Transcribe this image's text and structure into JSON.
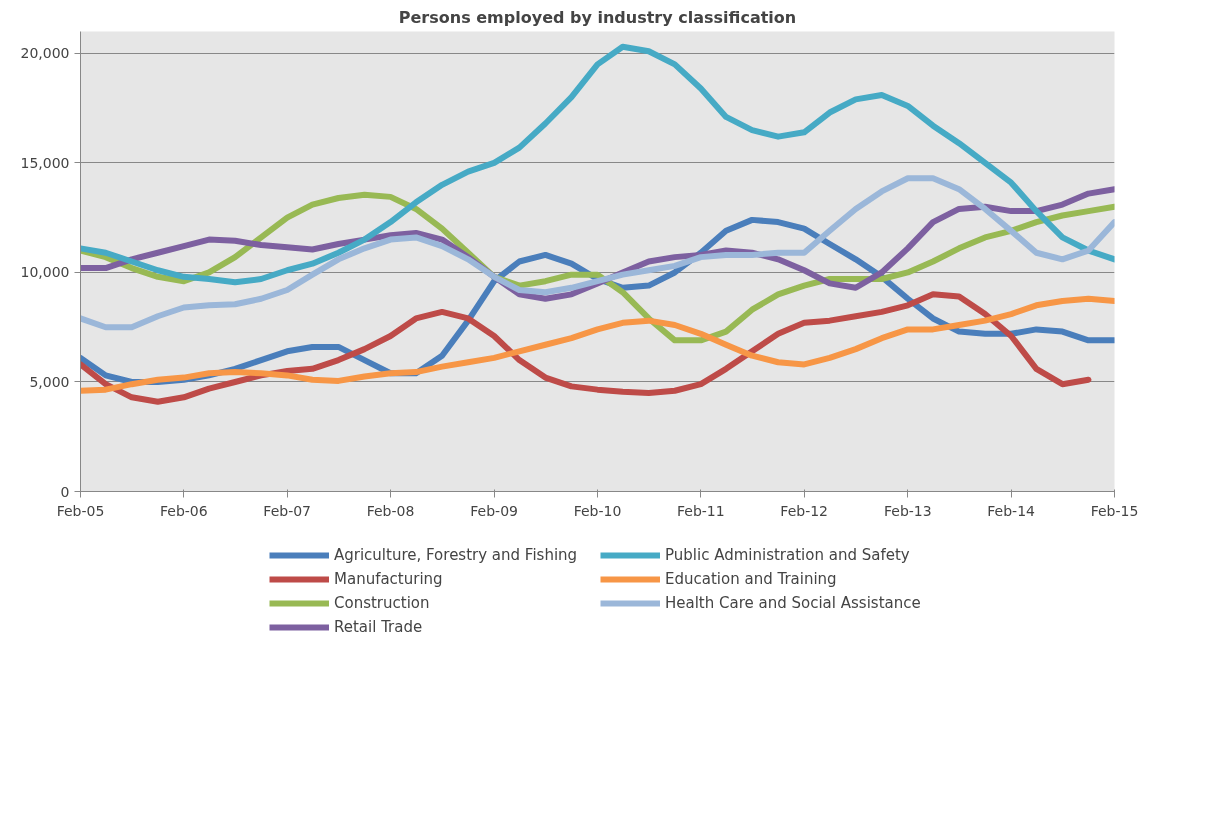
{
  "chart_data": {
    "type": "line",
    "title": "Persons employed by industry classification",
    "x": [
      "2005-02",
      "2005-05",
      "2005-08",
      "2005-11",
      "2006-02",
      "2006-05",
      "2006-08",
      "2006-11",
      "2007-02",
      "2007-05",
      "2007-08",
      "2007-11",
      "2008-02",
      "2008-05",
      "2008-08",
      "2008-11",
      "2009-02",
      "2009-05",
      "2009-08",
      "2009-11",
      "2010-02",
      "2010-05",
      "2010-08",
      "2010-11",
      "2011-02",
      "2011-05",
      "2011-08",
      "2011-11",
      "2012-02",
      "2012-05",
      "2012-08",
      "2012-11",
      "2013-02",
      "2013-05",
      "2013-08",
      "2013-11",
      "2014-02",
      "2014-05",
      "2014-08",
      "2014-11",
      "2015-02"
    ],
    "series": [
      {
        "name": "Agriculture, Forestry and Fishing",
        "color": "#4a7ebb",
        "values": [
          6100,
          5300,
          5000,
          5000,
          5100,
          5300,
          5600,
          6000,
          6400,
          6600,
          6600,
          6000,
          5400,
          5400,
          6200,
          7800,
          9600,
          10500,
          10800,
          10400,
          9700,
          9300,
          9400,
          10000,
          10900,
          11900,
          12400,
          12300,
          12000,
          11300,
          10600,
          9800,
          8800,
          7900,
          7300,
          7200,
          7200,
          7400,
          7300,
          6900,
          6900
        ]
      },
      {
        "name": "Manufacturing",
        "color": "#be4b48",
        "values": [
          5800,
          4900,
          4300,
          4100,
          4300,
          4700,
          5000,
          5300,
          5500,
          5600,
          6000,
          6500,
          7100,
          7900,
          8200,
          7900,
          7100,
          6000,
          5200,
          4800,
          4650,
          4550,
          4500,
          4600,
          4900,
          5600,
          6400,
          7200,
          7700,
          7800,
          8000,
          8200,
          8500,
          9000,
          8900,
          8100,
          7100,
          5600,
          4900,
          5100,
          null
        ]
      },
      {
        "name": "Construction",
        "color": "#98b954",
        "values": [
          11000,
          10700,
          10200,
          9800,
          9600,
          10000,
          10700,
          11600,
          12500,
          13100,
          13400,
          13550,
          13450,
          12900,
          12000,
          10900,
          9800,
          9400,
          9600,
          9900,
          9900,
          9100,
          7900,
          6900,
          6900,
          7300,
          8300,
          9000,
          9400,
          9700,
          9700,
          9700,
          10000,
          10500,
          11100,
          11600,
          11900,
          12300,
          12600,
          12800,
          13000
        ]
      },
      {
        "name": "Retail Trade",
        "color": "#7d60a0",
        "values": [
          10200,
          10200,
          10600,
          10900,
          11200,
          11500,
          11450,
          11250,
          11150,
          11050,
          11300,
          11500,
          11700,
          11800,
          11500,
          10700,
          9800,
          9000,
          8800,
          9000,
          9500,
          10000,
          10500,
          10700,
          10800,
          11000,
          10900,
          10600,
          10100,
          9500,
          9300,
          10000,
          11100,
          12300,
          12900,
          13000,
          12800,
          12800,
          13100,
          13600,
          13800
        ]
      },
      {
        "name": "Public Administration and Safety",
        "color": "#46aac5",
        "values": [
          11100,
          10900,
          10500,
          10100,
          9800,
          9700,
          9550,
          9700,
          10100,
          10400,
          10900,
          11500,
          12300,
          13200,
          14000,
          14600,
          15000,
          15700,
          16800,
          18000,
          19500,
          20300,
          20100,
          19500,
          18400,
          17100,
          16500,
          16200,
          16400,
          17300,
          17900,
          18100,
          17600,
          16700,
          15900,
          15000,
          14100,
          12800,
          11600,
          11000,
          10600
        ]
      },
      {
        "name": "Education and Training",
        "color": "#f79646",
        "values": [
          4600,
          4650,
          4900,
          5100,
          5200,
          5400,
          5450,
          5400,
          5300,
          5100,
          5050,
          5250,
          5400,
          5450,
          5700,
          5900,
          6100,
          6400,
          6700,
          7000,
          7400,
          7700,
          7800,
          7600,
          7200,
          6700,
          6200,
          5900,
          5800,
          6100,
          6500,
          7000,
          7400,
          7400,
          7600,
          7800,
          8100,
          8500,
          8700,
          8800,
          8700
        ]
      },
      {
        "name": "Health Care and Social Assistance",
        "color": "#9bb7d9",
        "values": [
          7900,
          7500,
          7500,
          8000,
          8400,
          8500,
          8550,
          8800,
          9200,
          9900,
          10600,
          11100,
          11500,
          11600,
          11200,
          10600,
          9800,
          9200,
          9100,
          9300,
          9600,
          9900,
          10100,
          10300,
          10700,
          10800,
          10800,
          10900,
          10900,
          11900,
          12900,
          13700,
          14300,
          14300,
          13800,
          12900,
          11900,
          10900,
          10600,
          11000,
          12300
        ]
      }
    ],
    "xlim": [
      "2005-02",
      "2015-02"
    ],
    "xticks": [
      {
        "value": "2005-02",
        "label": "Feb-05"
      },
      {
        "value": "2006-02",
        "label": "Feb-06"
      },
      {
        "value": "2007-02",
        "label": "Feb-07"
      },
      {
        "value": "2008-02",
        "label": "Feb-08"
      },
      {
        "value": "2009-02",
        "label": "Feb-09"
      },
      {
        "value": "2010-02",
        "label": "Feb-10"
      },
      {
        "value": "2011-02",
        "label": "Feb-11"
      },
      {
        "value": "2012-02",
        "label": "Feb-12"
      },
      {
        "value": "2013-02",
        "label": "Feb-13"
      },
      {
        "value": "2014-02",
        "label": "Feb-14"
      },
      {
        "value": "2015-02",
        "label": "Feb-15"
      }
    ],
    "ylim": [
      0,
      21000
    ],
    "yticks": [
      {
        "value": 0,
        "label": "0"
      },
      {
        "value": 5000,
        "label": "5,000"
      },
      {
        "value": 10000,
        "label": "10,000"
      },
      {
        "value": 15000,
        "label": "15,000"
      },
      {
        "value": 20000,
        "label": "20,000"
      }
    ],
    "grid": "y",
    "legend": "bottom",
    "marker": "none",
    "line_style": "solid"
  }
}
